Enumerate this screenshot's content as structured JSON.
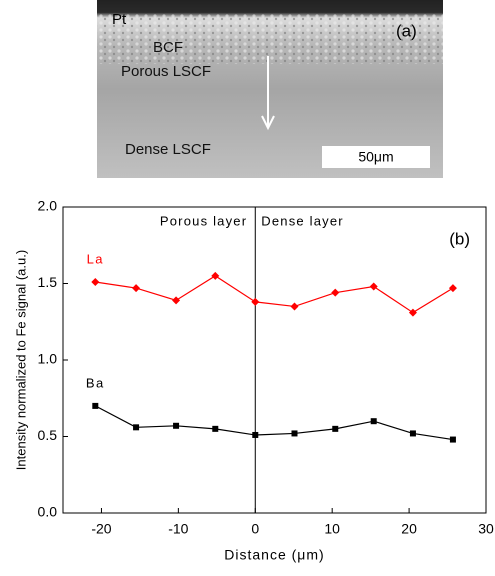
{
  "image": {
    "labels": [
      "Pt",
      "BCF",
      "Porous LSCF",
      "Dense LSCF"
    ],
    "scale_bar": "50μm",
    "panel": "(a)"
  },
  "chart_data": {
    "type": "line",
    "x_label": "Distance (μm)",
    "y_label": "Intensity normalized to Fe signal (a.u.)",
    "annotations": [
      "Porous layer",
      "Dense layer",
      "(b)"
    ],
    "vline": 0,
    "xlim": [
      -25,
      30
    ],
    "xticks": [
      -20,
      -10,
      0,
      10,
      20,
      30
    ],
    "ylim": [
      0,
      2
    ],
    "yticks": [
      {
        "value": 0,
        "label": "0.0"
      },
      {
        "value": 0.5,
        "label": "0.5"
      },
      {
        "value": 1,
        "label": "1.0"
      },
      1.5,
      {
        "value": 2,
        "label": "2.0"
      }
    ],
    "x": [
      -20.8,
      -15.5,
      -10.3,
      -5.2,
      0,
      5.1,
      10.4,
      15.4,
      20.5,
      25.7
    ],
    "series": [
      {
        "name": "La",
        "color": "#ff0000",
        "marker": "diamond",
        "values": [
          1.51,
          1.47,
          1.39,
          1.55,
          1.38,
          1.35,
          1.44,
          1.48,
          1.31,
          1.47
        ]
      },
      {
        "name": "Ba",
        "color": "#000000",
        "marker": "square",
        "values": [
          0.7,
          0.56,
          0.57,
          0.55,
          0.51,
          0.52,
          0.55,
          0.6,
          0.52,
          0.48
        ]
      }
    ]
  }
}
